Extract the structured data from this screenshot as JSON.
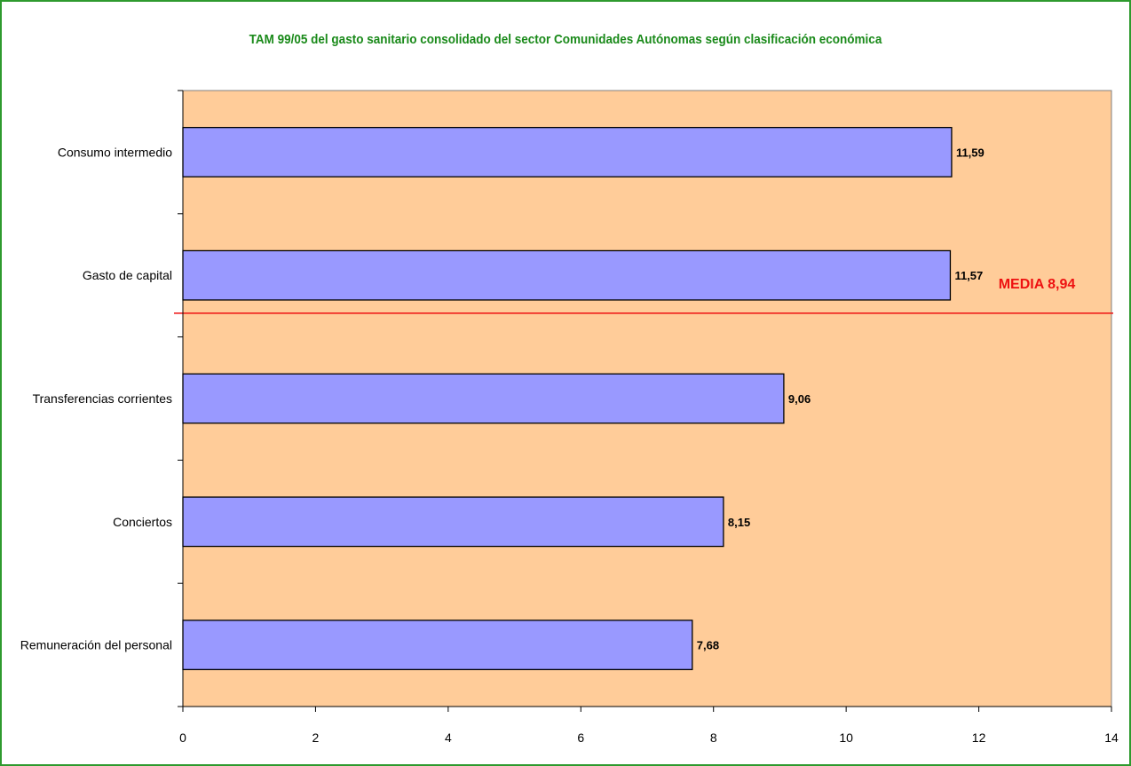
{
  "chart_data": {
    "type": "bar",
    "orientation": "horizontal",
    "title": "TAM 99/05 del gasto sanitario consolidado del sector Comunidades Autónomas  según clasificación económica",
    "categories": [
      "Consumo intermedio",
      "Gasto de capital",
      "Transferencias corrientes",
      "Conciertos",
      "Remuneración del personal"
    ],
    "values": [
      11.59,
      11.57,
      9.06,
      8.15,
      7.68
    ],
    "value_labels": [
      "11,59",
      "11,57",
      "9,06",
      "8,15",
      "7,68"
    ],
    "xlim": [
      0,
      14
    ],
    "xticks": [
      0,
      2,
      4,
      6,
      8,
      10,
      12,
      14
    ],
    "xlabel": "",
    "ylabel": "",
    "grid": false,
    "reference_line": {
      "label": "MEDIA 8,94",
      "value": 8.94,
      "color": "#ee1111"
    },
    "colors": {
      "bar_fill": "#9999ff",
      "plot_background": "#ffcc99",
      "title": "#1a8a1a",
      "frame": "#2e9a2e"
    }
  }
}
